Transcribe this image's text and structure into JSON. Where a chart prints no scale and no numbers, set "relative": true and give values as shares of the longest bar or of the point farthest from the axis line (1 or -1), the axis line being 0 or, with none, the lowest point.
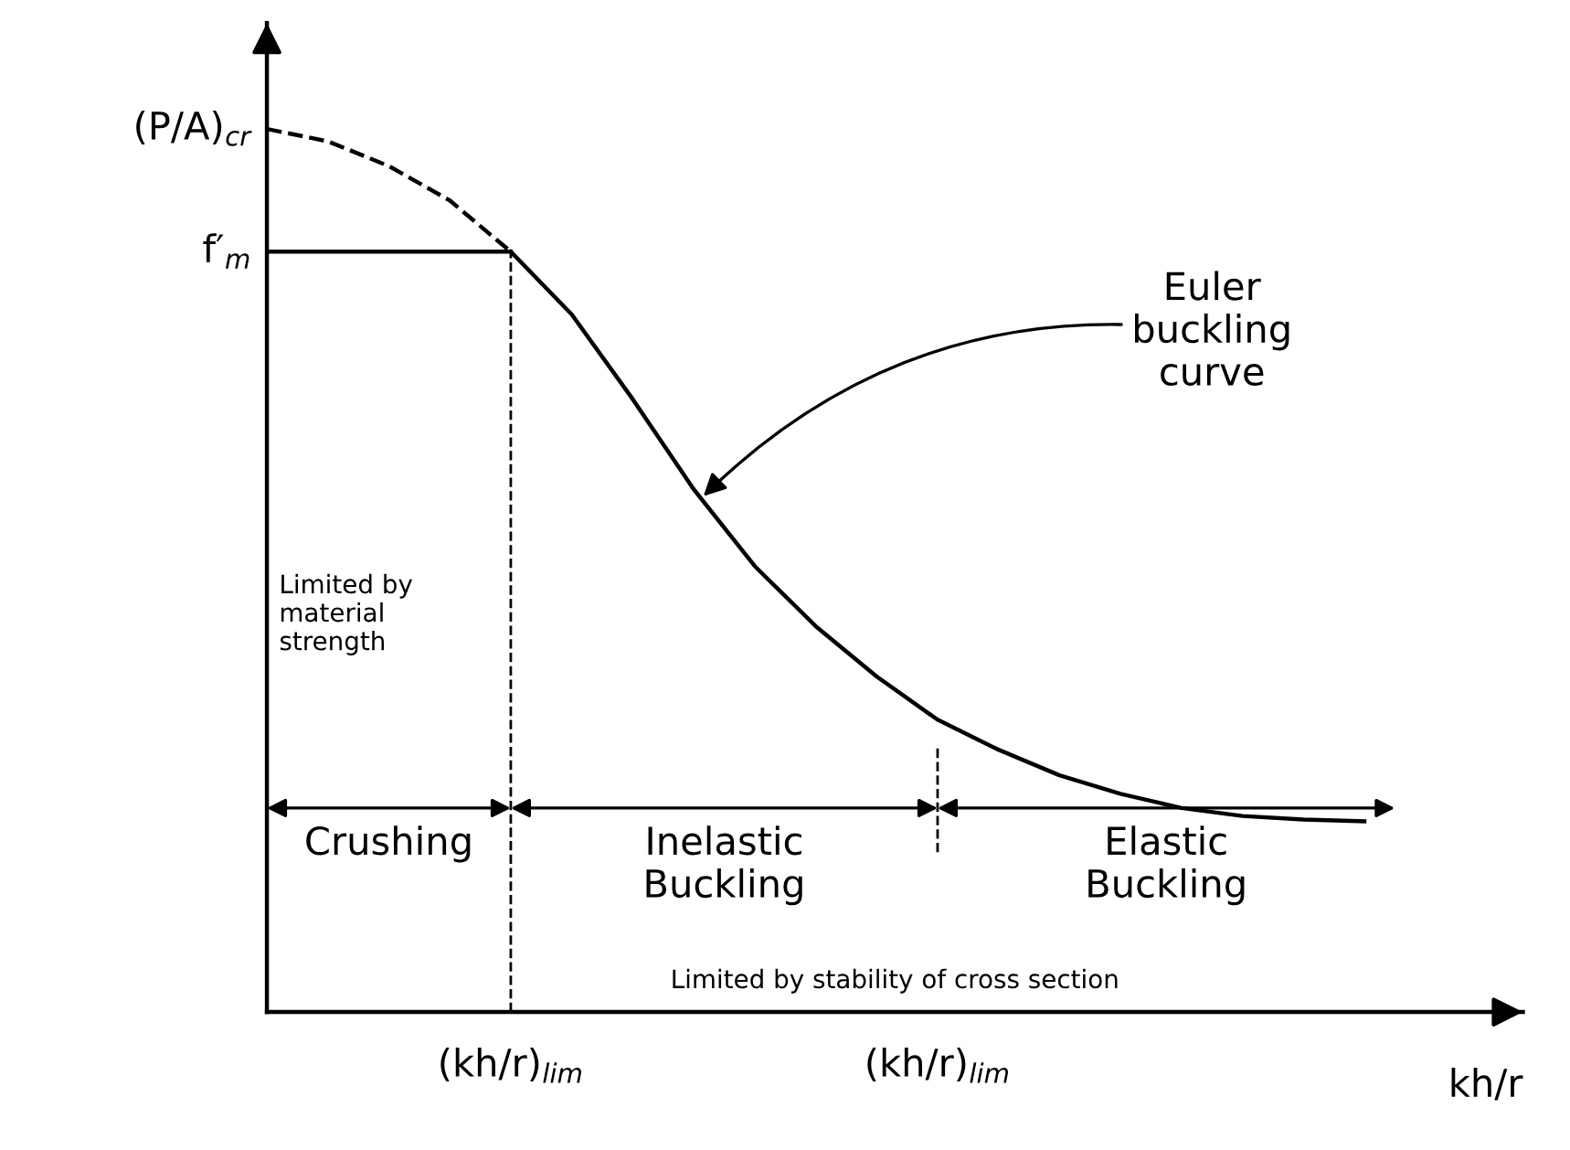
{
  "chart_data": {
    "type": "line",
    "relative": true,
    "xlabel": "kh/r",
    "categories": [
      null,
      null,
      null,
      null,
      "(kh/r)$_{lim}$",
      null,
      null,
      null,
      null,
      null,
      null,
      "(kh/r)$_{lim}$",
      null,
      null,
      null,
      null,
      null,
      null,
      null,
      null
    ],
    "series": [
      {
        "color": "#000000",
        "line_style": "dashed",
        "values": [
          1,
          0.986,
          0.958,
          0.919,
          0.861,
          null,
          null,
          null,
          null,
          null,
          null,
          null,
          null,
          null,
          null,
          null,
          null,
          null,
          null,
          null
        ]
      },
      {
        "color": "#000000",
        "line_style": "solid",
        "values": [
          0.861,
          0.861,
          0.861,
          0.861,
          0.861,
          null,
          null,
          null,
          null,
          null,
          null,
          null,
          null,
          null,
          null,
          null,
          null,
          null,
          null,
          null
        ]
      },
      {
        "color": "#000000",
        "line_style": "solid",
        "values": [
          null,
          null,
          null,
          null,
          0.861,
          0.79,
          0.694,
          0.592,
          0.505,
          0.437,
          0.38,
          0.331,
          0.297,
          0.268,
          0.247,
          0.231,
          0.222,
          0.218,
          0.216,
          null
        ]
      }
    ],
    "annotations": [
      "(P/A)$_{cr}$",
      "f′$_{m}$",
      "Euler\nbuckling\ncurve",
      "Limited by\nmaterial\nstrength",
      "Crushing",
      "Inelastic\nBuckling",
      "Elastic\nBuckling",
      "Limited by stability of cross section"
    ]
  }
}
